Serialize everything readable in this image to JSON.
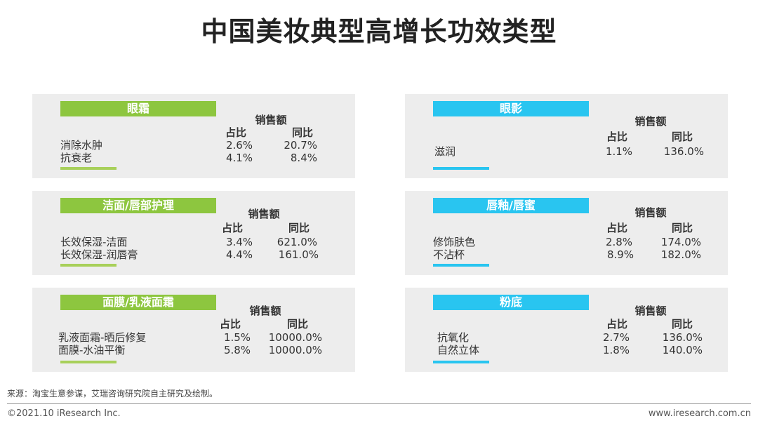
{
  "title": "中国美妆典型高增长功效类型",
  "header_metric": "销售额",
  "col_share": "占比",
  "col_yoy": "同比",
  "panels": [
    {
      "category": "眼霜",
      "rows": [
        {
          "name": "消除水肿",
          "share": "2.6%",
          "yoy": "20.7%"
        },
        {
          "name": "抗衰老",
          "share": "4.1%",
          "yoy": "8.4%"
        }
      ]
    },
    {
      "category": "眼影",
      "rows": [
        {
          "name": "滋润",
          "share": "1.1%",
          "yoy": "136.0%"
        }
      ]
    },
    {
      "category": "洁面/唇部护理",
      "rows": [
        {
          "name": "长效保湿-洁面",
          "share": "3.4%",
          "yoy": "621.0%"
        },
        {
          "name": "长效保湿-润唇膏",
          "share": "4.4%",
          "yoy": "161.0%"
        }
      ]
    },
    {
      "category": "唇釉/唇蜜",
      "rows": [
        {
          "name": "修饰肤色",
          "share": "2.8%",
          "yoy": "174.0%"
        },
        {
          "name": "不沾杯",
          "share": "8.9%",
          "yoy": "182.0%"
        }
      ]
    },
    {
      "category": "面膜/乳液面霜",
      "rows": [
        {
          "name": "乳液面霜-晒后修复",
          "share": "1.5%",
          "yoy": "10000.0%"
        },
        {
          "name": "面膜-水油平衡",
          "share": "5.8%",
          "yoy": "10000.0%"
        }
      ]
    },
    {
      "category": "粉底",
      "rows": [
        {
          "name": "抗氧化",
          "share": "2.7%",
          "yoy": "136.0%"
        },
        {
          "name": "自然立体",
          "share": "1.8%",
          "yoy": "140.0%"
        }
      ]
    }
  ],
  "colors": {
    "left_accent": "#8dc63f",
    "right_accent": "#29c5f0",
    "panel_bg": "#ededed"
  },
  "source": "来源：淘宝生意参谋，艾瑞咨询研究院自主研究及绘制。",
  "copyright": "©2021.10 iResearch Inc.",
  "website": "www.iresearch.com.cn"
}
